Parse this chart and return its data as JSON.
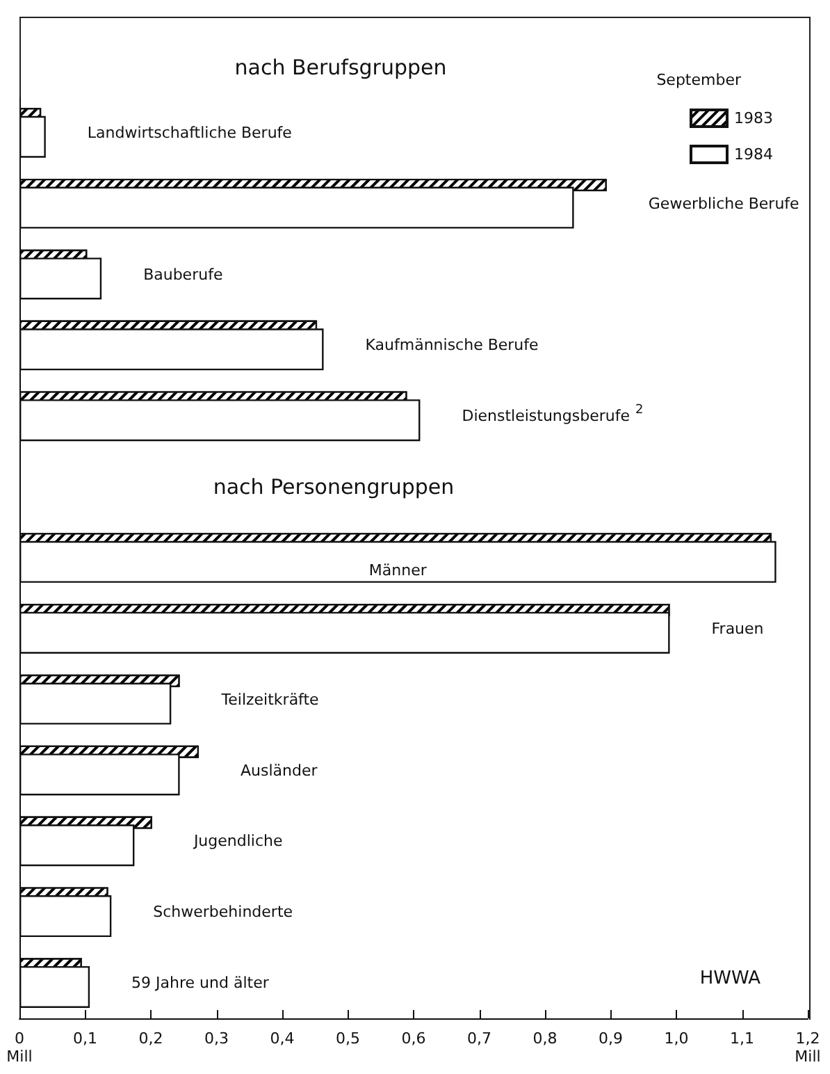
{
  "chart_data": {
    "type": "bar",
    "orientation": "horizontal",
    "title": "nach Berufsgruppen",
    "legend_title": "September",
    "legend": "top right",
    "categories": [
      "Landwirtschaftliche Berufe",
      "Gewerbliche Berufe",
      "Bauberufe",
      "Kaufmännische Berufe",
      "Dienstleistungsberufe$^{2}$",
      null,
      "Männer",
      "Frauen",
      "Teilzeitkräfte",
      "Ausländer",
      "Jugendliche",
      "Schwerbehinderte",
      "59 Jahre und älter"
    ],
    "series": [
      {
        "name": "1983",
        "color": "#000000",
        "values": [
          0.033,
          0.894,
          0.103,
          0.453,
          0.59,
          null,
          1.145,
          0.99,
          0.244,
          0.273,
          0.202,
          0.135,
          0.095
        ]
      },
      {
        "name": "1984",
        "color": "#ffffff",
        "values": [
          0.04,
          0.844,
          0.125,
          0.463,
          0.61,
          null,
          1.152,
          0.99,
          0.231,
          0.244,
          0.175,
          0.14,
          0.107
        ]
      }
    ],
    "xlim": [
      0,
      1.2
    ],
    "xticks": [
      {
        "value": 0,
        "label": "0\nMill"
      },
      {
        "value": 0.1,
        "label": "0,1"
      },
      {
        "value": 0.2,
        "label": "0,2"
      },
      {
        "value": 0.3,
        "label": "0,3"
      },
      {
        "value": 0.4,
        "label": "0,4"
      },
      {
        "value": 0.5,
        "label": "0,5"
      },
      {
        "value": 0.6,
        "label": "0,6"
      },
      {
        "value": 0.7,
        "label": "0,7"
      },
      {
        "value": 0.8,
        "label": "0,8"
      },
      {
        "value": 0.9,
        "label": "0,9"
      },
      {
        "value": 1.0,
        "label": "1,0"
      },
      {
        "value": 1.1,
        "label": "1,1"
      },
      {
        "value": 1.2,
        "label": "1,2\nMill"
      }
    ],
    "annotations": [
      "nach Personengruppen",
      "HWWA"
    ]
  }
}
